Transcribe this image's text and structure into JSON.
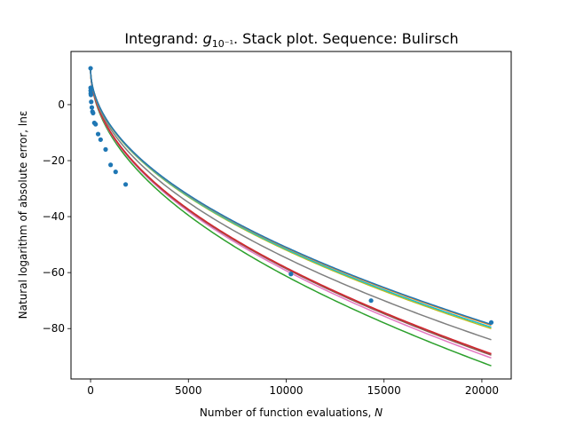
{
  "chart_data": {
    "type": "line",
    "title_prefix": "Integrand: ",
    "title_symbol": "g",
    "title_subscript": "10⁻¹",
    "title_suffix": ". Stack plot. Sequence: Bulirsch",
    "xlabel_text": "Number of function evaluations, ",
    "xlabel_symbol": "N",
    "ylabel": "Natural logarithm of absolute error, lnε",
    "xlim": [
      -1000,
      21500
    ],
    "ylim": [
      -98,
      19
    ],
    "xticks": [
      0,
      5000,
      10000,
      15000,
      20000
    ],
    "xtick_labels": [
      "0",
      "5000",
      "10000",
      "15000",
      "20000"
    ],
    "yticks": [
      0,
      -20,
      -40,
      -60,
      -80
    ],
    "ytick_labels": [
      "0",
      "−20",
      "−40",
      "−60",
      "−80"
    ],
    "grid": false,
    "legend": "none",
    "series": [
      {
        "color": "#2ca02c",
        "final": -93.3
      },
      {
        "color": "#e377c2",
        "final": -90.5
      },
      {
        "color": "#8c564b",
        "final": -89.5
      },
      {
        "color": "#9467bd",
        "final": -89.0
      },
      {
        "color": "#d62728",
        "final": -89.0
      },
      {
        "color": "#7f7f7f",
        "final": -84.0
      },
      {
        "color": "#bcbd22",
        "final": -80.0
      },
      {
        "color": "#17becf",
        "final": -79.5
      },
      {
        "color": "#ff7f0e",
        "final": -78.8
      },
      {
        "color": "#1f77b4",
        "final": -78.5
      }
    ],
    "points": {
      "color": "#1f77b4",
      "x": [
        1,
        3,
        5,
        9,
        17,
        33,
        65,
        97,
        129,
        193,
        257,
        385,
        513,
        769,
        1025,
        1281,
        1793,
        10241,
        14337,
        20481
      ],
      "y": [
        13.0,
        6.0,
        5.0,
        4.0,
        3.5,
        1.0,
        -1.0,
        -2.5,
        -3.0,
        -6.5,
        -7.0,
        -10.5,
        -12.5,
        -16.0,
        -21.5,
        -24.0,
        -28.5,
        -60.5,
        -70.0,
        -77.8
      ]
    }
  }
}
